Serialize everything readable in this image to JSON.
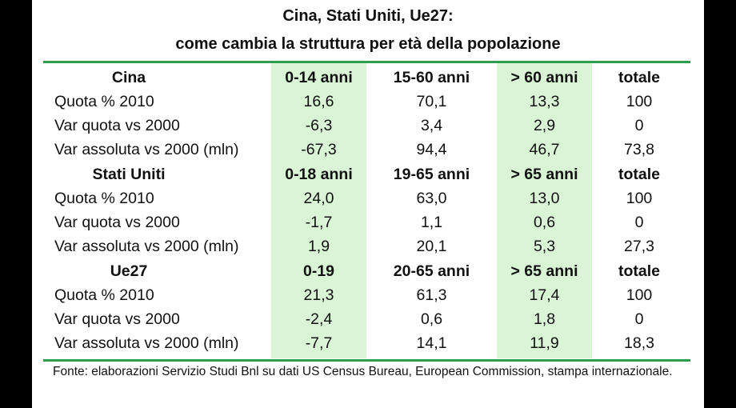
{
  "title_line1": "Cina, Stati Uniti, Ue27:",
  "title_line2": "come cambia la struttura per età della popolazione",
  "sections": [
    {
      "header": {
        "name": "Cina",
        "c1": "0-14 anni",
        "c2": "15-60 anni",
        "c3": "> 60 anni",
        "c4": "totale"
      },
      "rows": [
        {
          "label": "Quota % 2010",
          "c1": "16,6",
          "c2": "70,1",
          "c3": "13,3",
          "c4": "100"
        },
        {
          "label": "Var quota  vs 2000",
          "c1": "-6,3",
          "c2": "3,4",
          "c3": "2,9",
          "c4": "0"
        },
        {
          "label": "Var assoluta vs 2000 (mln)",
          "c1": "-67,3",
          "c2": "94,4",
          "c3": "46,7",
          "c4": "73,8"
        }
      ]
    },
    {
      "header": {
        "name": "Stati Uniti",
        "c1": "0-18 anni",
        "c2": "19-65 anni",
        "c3": "> 65 anni",
        "c4": "totale"
      },
      "rows": [
        {
          "label": "Quota % 2010",
          "c1": "24,0",
          "c2": "63,0",
          "c3": "13,0",
          "c4": "100"
        },
        {
          "label": "Var quota  vs 2000",
          "c1": "-1,7",
          "c2": "1,1",
          "c3": "0,6",
          "c4": "0"
        },
        {
          "label": "Var assoluta vs 2000 (mln)",
          "c1": "1,9",
          "c2": "20,1",
          "c3": "5,3",
          "c4": "27,3"
        }
      ]
    },
    {
      "header": {
        "name": "Ue27",
        "c1": "0-19",
        "c2": "20-65 anni",
        "c3": "> 65 anni",
        "c4": "totale"
      },
      "rows": [
        {
          "label": "Quota % 2010",
          "c1": "21,3",
          "c2": "61,3",
          "c3": "17,4",
          "c4": "100"
        },
        {
          "label": "Var quota  vs 2000",
          "c1": "-2,4",
          "c2": "0,6",
          "c3": "1,8",
          "c4": "0"
        },
        {
          "label": "Var assoluta vs 2000 (mln)",
          "c1": "-7,7",
          "c2": "14,1",
          "c3": "11,9",
          "c4": "18,3"
        }
      ]
    }
  ],
  "source": "Fonte: elaborazioni Servizio Studi Bnl su dati US Census Bureau, European Commission, stampa internazionale.",
  "colors": {
    "rule": "#2f9e4a",
    "highlight": "#d9f5d6"
  }
}
